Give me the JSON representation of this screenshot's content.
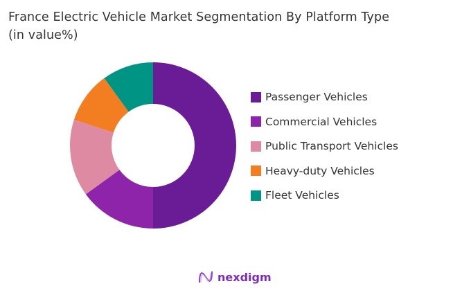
{
  "chart_data": {
    "type": "pie",
    "donut": true,
    "title": "France Electric Vehicle Market Segmentation By Platform Type (in value%)",
    "title_lines": [
      "France Electric Vehicle Market Segmentation By Platform Type",
      "(in value%)"
    ],
    "categories": [
      "Passenger Vehicles",
      "Commercial Vehicles",
      "Public Transport Vehicles",
      "Heavy-duty Vehicles",
      "Fleet Vehicles"
    ],
    "values": [
      50,
      15,
      15,
      10,
      10
    ],
    "colors": [
      "#6a1b96",
      "#8e24aa",
      "#de8aa2",
      "#f37e22",
      "#009485"
    ],
    "legend_position": "right"
  },
  "brand": {
    "name": "nexdigm",
    "color": "#7b2cbf"
  }
}
